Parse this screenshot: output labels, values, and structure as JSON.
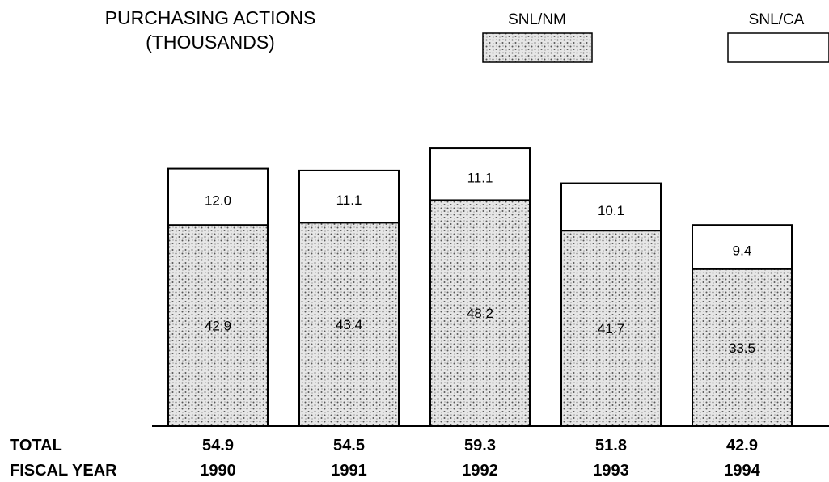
{
  "chart_data": {
    "type": "bar",
    "stacked": true,
    "title": [
      "PURCHASING ACTIONS",
      "(THOUSANDS)"
    ],
    "categories": [
      "1990",
      "1991",
      "1992",
      "1993",
      "1994"
    ],
    "series": [
      {
        "name": "SNL/NM",
        "values": [
          42.9,
          43.4,
          48.2,
          41.7,
          33.5
        ]
      },
      {
        "name": "SNL/CA",
        "values": [
          12.0,
          11.1,
          11.1,
          10.1,
          9.4
        ]
      }
    ],
    "totals": [
      54.9,
      54.5,
      59.3,
      51.8,
      42.9
    ],
    "row_labels": {
      "total": "TOTAL",
      "fiscal_year": "FISCAL YEAR"
    },
    "legend_position": "top-right",
    "colors": {
      "snl_nm_fill": "#bdbdbd",
      "snl_ca_fill": "#ffffff",
      "border": "#000000"
    }
  }
}
